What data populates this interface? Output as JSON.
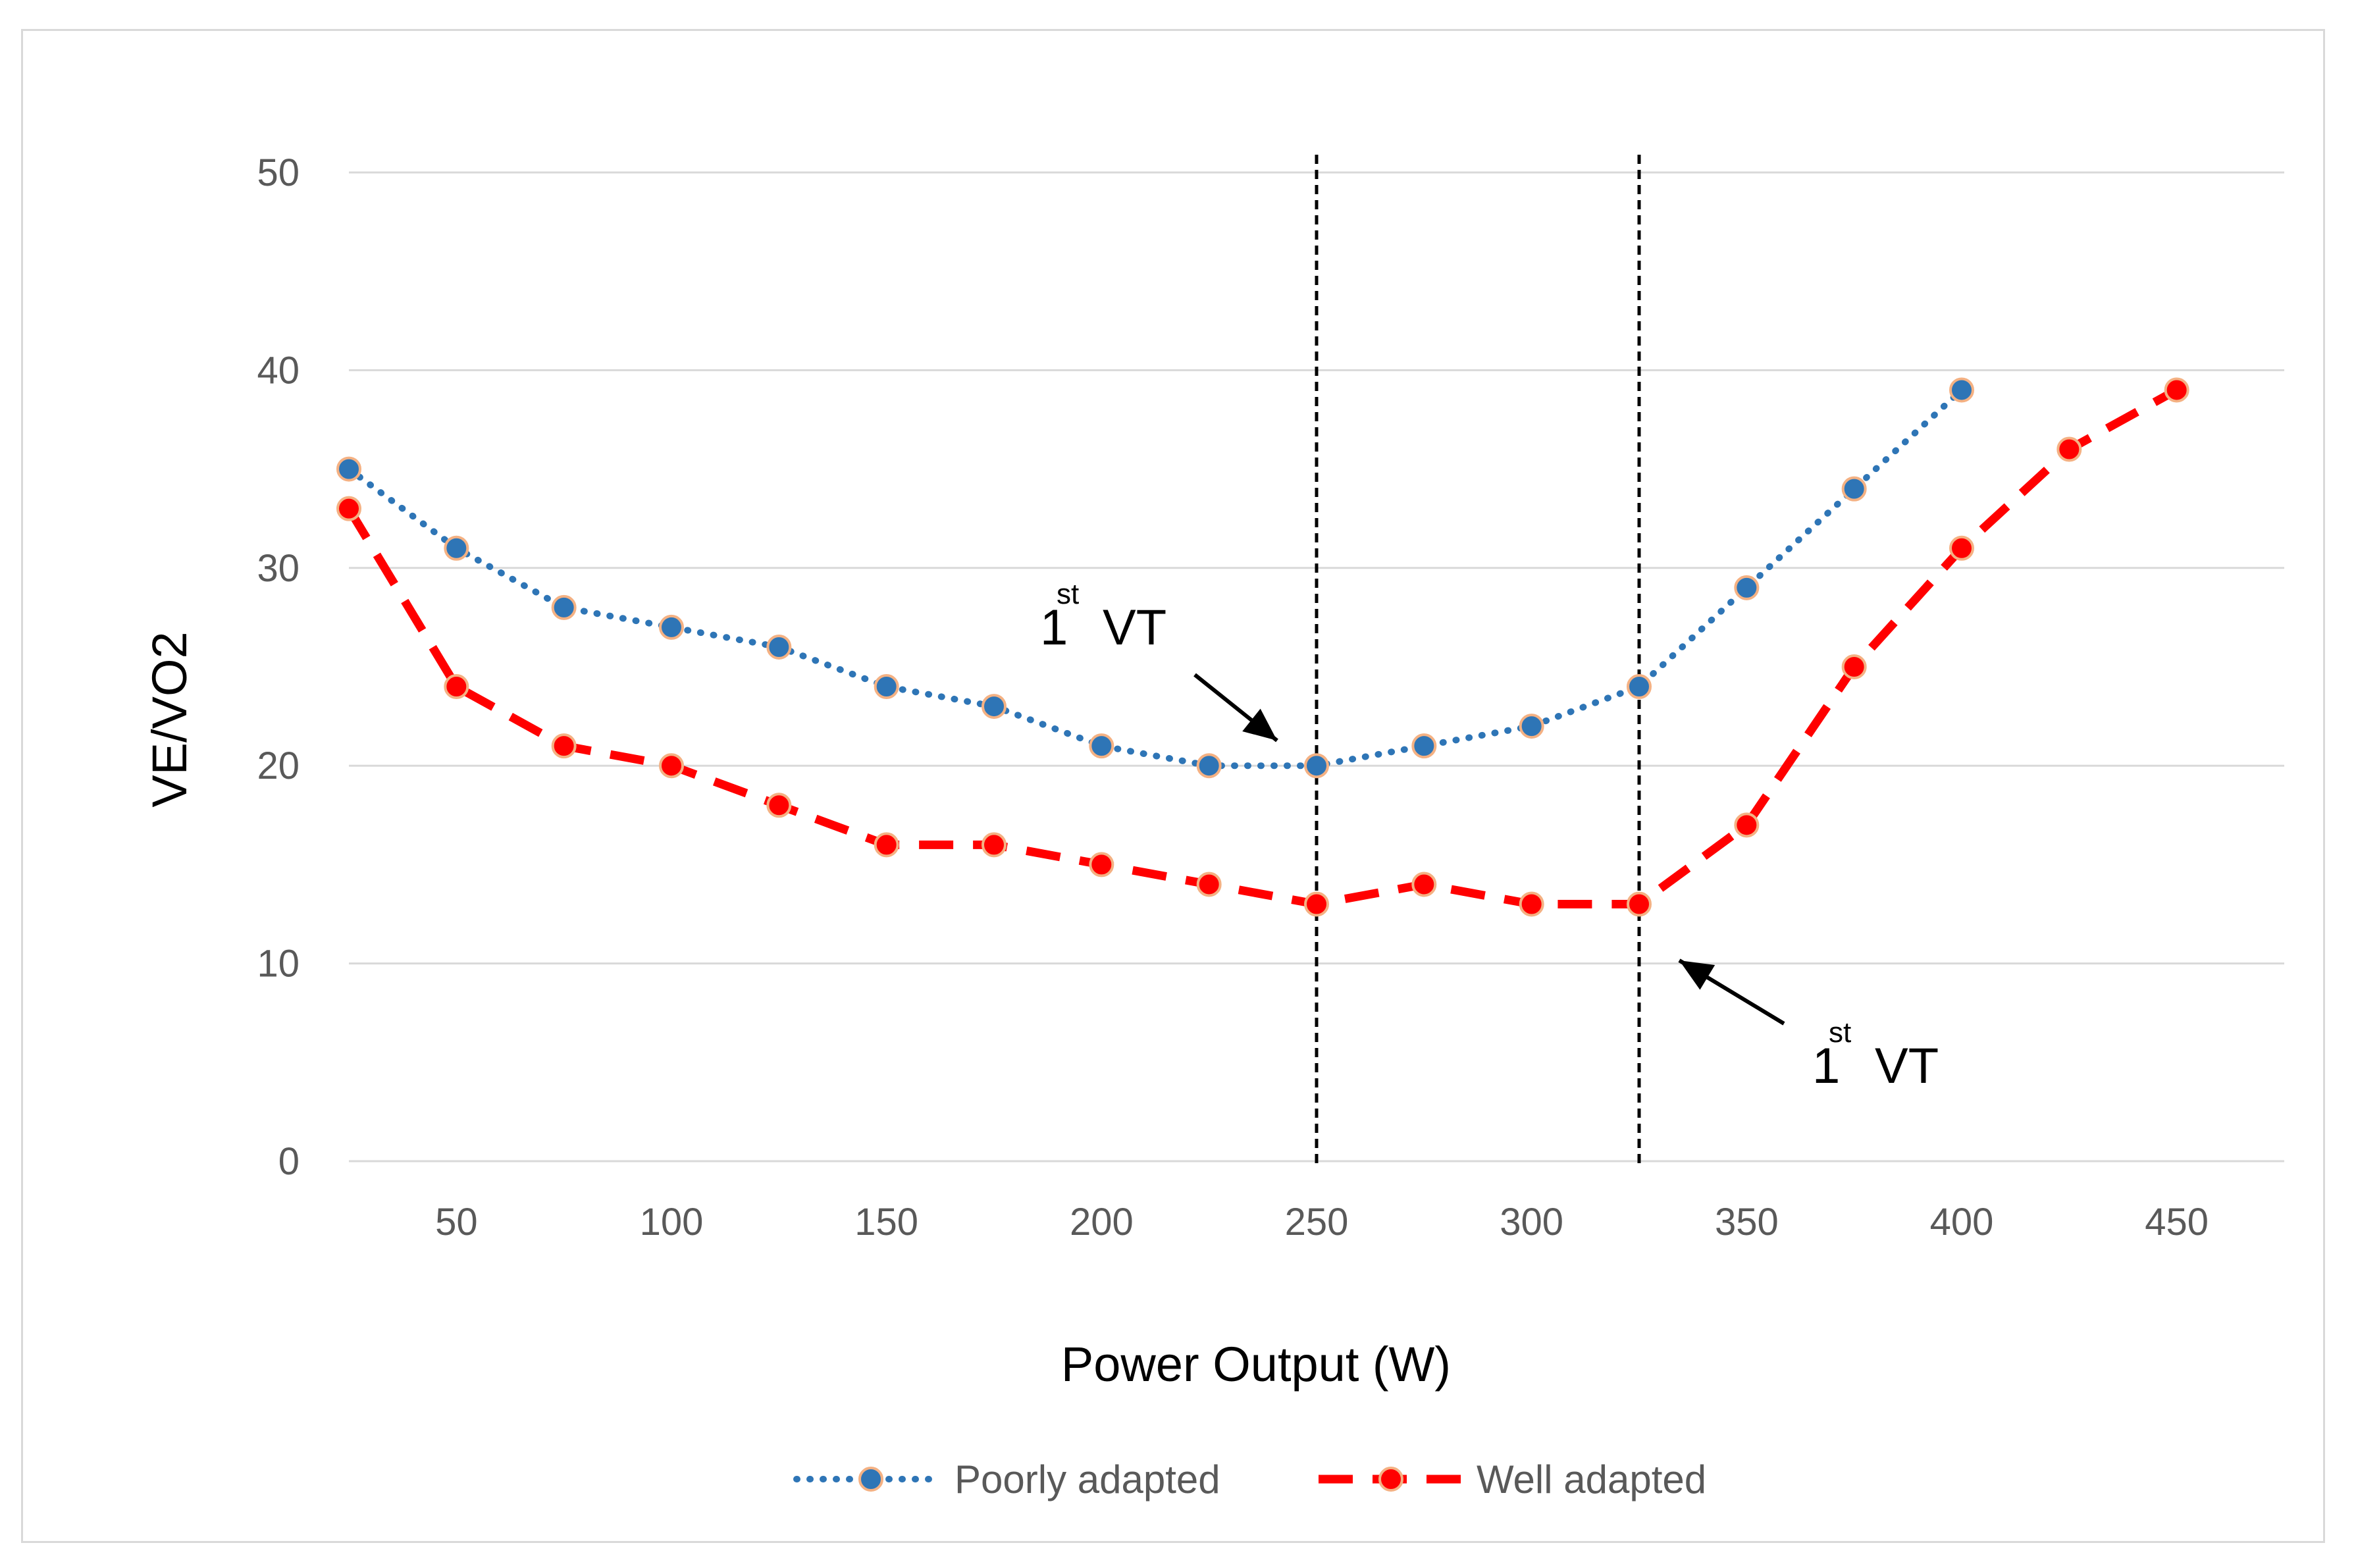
{
  "chart_data": {
    "type": "line",
    "title": "",
    "xlabel": "Power Output (W)",
    "ylabel": "VE/VO2",
    "xlim": [
      25,
      475
    ],
    "ylim": [
      0,
      50
    ],
    "x_ticks": [
      50,
      100,
      150,
      200,
      250,
      300,
      350,
      400,
      450
    ],
    "y_ticks": [
      0,
      10,
      20,
      30,
      40,
      50
    ],
    "grid": true,
    "legend_position": "bottom",
    "series": [
      {
        "name": "Poorly adapted",
        "line_style": "dotted",
        "color": "#2E75B6",
        "marker_color": "#2E75B6",
        "x": [
          25,
          50,
          75,
          100,
          125,
          150,
          175,
          200,
          225,
          250,
          275,
          300,
          325,
          350,
          375,
          400
        ],
        "values": [
          35,
          31,
          28,
          27,
          26,
          24,
          23,
          21,
          20,
          20,
          21,
          22,
          24,
          29,
          34,
          39
        ]
      },
      {
        "name": "Well adapted",
        "line_style": "dashed",
        "color": "#FF0000",
        "marker_color": "#FF0000",
        "x": [
          25,
          50,
          75,
          100,
          125,
          150,
          175,
          200,
          225,
          250,
          275,
          300,
          325,
          350,
          375,
          400,
          425,
          450
        ],
        "values": [
          33,
          24,
          21,
          20,
          18,
          16,
          16,
          15,
          14,
          13,
          14,
          13,
          13,
          17,
          25,
          31,
          36,
          39
        ]
      }
    ],
    "vertical_lines": [
      250,
      325
    ],
    "annotations": [
      {
        "base": "1",
        "sup": "st",
        "label": "VT",
        "target_x": 250,
        "target_y": 20
      },
      {
        "base": "1",
        "sup": "st",
        "label": "VT",
        "target_x": 325,
        "target_y": 13
      }
    ]
  },
  "colors": {
    "grid": "#d9d9d9",
    "tick_text": "#595959",
    "marker_edge": "#F4B183",
    "vline": "#000000"
  }
}
